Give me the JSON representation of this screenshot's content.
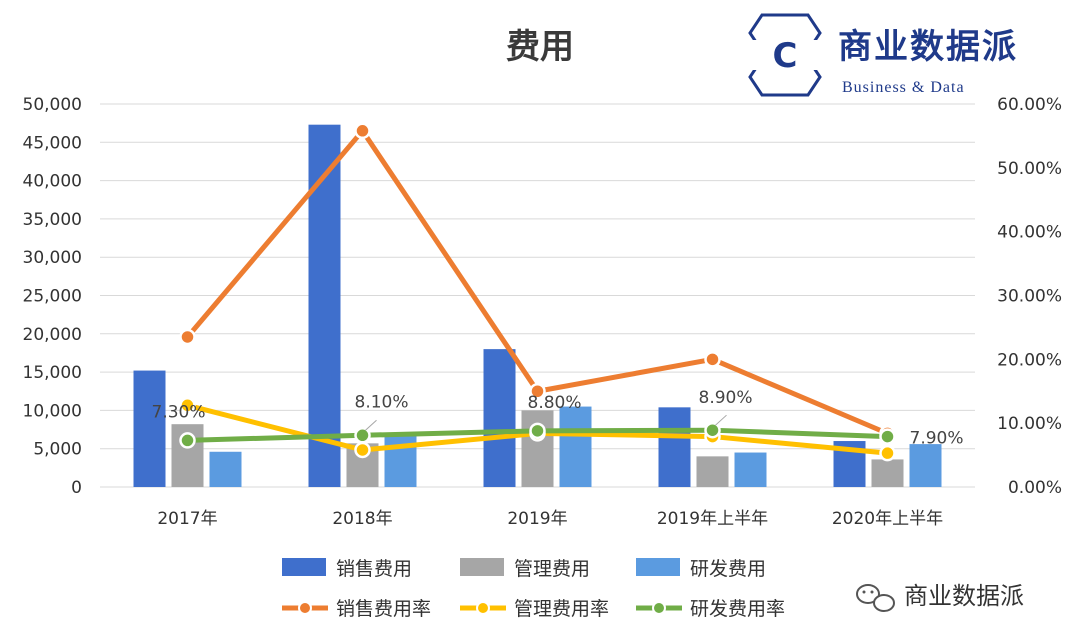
{
  "chart_data": {
    "type": "bar",
    "title": "费用",
    "categories": [
      "2017年",
      "2018年",
      "2019年",
      "2019年上半年",
      "2020年上半年"
    ],
    "y_left_ticks": [
      "0",
      "5,000",
      "10,000",
      "15,000",
      "20,000",
      "25,000",
      "30,000",
      "35,000",
      "40,000",
      "45,000",
      "50,000"
    ],
    "y_right_ticks": [
      "0.00%",
      "10.00%",
      "20.00%",
      "30.00%",
      "40.00%",
      "50.00%",
      "60.00%"
    ],
    "ylim_left": [
      0,
      50000
    ],
    "ylim_right": [
      0,
      60
    ],
    "bar_series": [
      {
        "name": "销售费用",
        "color": "#3f6fcc",
        "values": [
          15200,
          47300,
          18000,
          10400,
          6000
        ]
      },
      {
        "name": "管理费用",
        "color": "#a6a6a6",
        "values": [
          8200,
          5700,
          10000,
          4000,
          3600
        ]
      },
      {
        "name": "研发费用",
        "color": "#5b9be0",
        "values": [
          4600,
          6700,
          10500,
          4500,
          5600
        ]
      }
    ],
    "line_series": [
      {
        "name": "销售费用率",
        "color": "#ed7d31",
        "values": [
          23.5,
          55.8,
          15.0,
          20.0,
          8.4
        ]
      },
      {
        "name": "管理费用率",
        "color": "#ffc000",
        "values": [
          12.8,
          5.8,
          8.4,
          7.9,
          5.3
        ]
      },
      {
        "name": "研发费用率",
        "color": "#70ad47",
        "values": [
          7.3,
          8.1,
          8.8,
          8.9,
          7.9
        ]
      }
    ],
    "data_labels": [
      "7.30%",
      "8.10%",
      "8.80%",
      "8.90%",
      "7.90%"
    ]
  },
  "logo": {
    "cn": "商业数据派",
    "en": "Business & Data",
    "letter": "C"
  },
  "watermark": {
    "text": "商业数据派"
  }
}
